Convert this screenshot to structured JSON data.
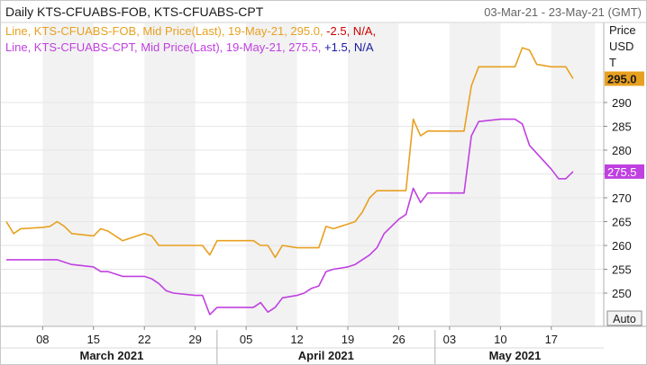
{
  "header": {
    "title": "Daily KTS-CFUABS-FOB, KTS-CFUABS-CPT",
    "date_range": "03-Mar-21 - 23-May-21 (GMT)"
  },
  "legend": [
    {
      "prefix": "Line, KTS-CFUABS-FOB, Mid Price(Last), 19-May-21, 295.0, ",
      "change": "-2.5",
      "change_color": "#cc0000",
      "suffix": ", N/A,",
      "color": "#e8a020"
    },
    {
      "prefix": "Line, KTS-CFUABS-CPT, Mid Price(Last), 19-May-21, 275.5, ",
      "change": "+1.5",
      "change_color": "#1a1aa0",
      "suffix": ", N/A",
      "color": "#c040e0"
    }
  ],
  "price_axis": {
    "label_line1": "Price",
    "label_line2": "USD",
    "label_line3": "T",
    "auto_label": "Auto"
  },
  "last_value_tags": [
    {
      "series": "KTS-CFUABS-FOB",
      "value": 295.0,
      "text": "295.0",
      "bg": "#e8a020"
    },
    {
      "series": "KTS-CFUABS-CPT",
      "value": 275.5,
      "text": "275.5",
      "bg": "#c040e0"
    }
  ],
  "chart_data": {
    "type": "line",
    "x_unit": "date",
    "xlim": [
      "2021-03-03",
      "2021-05-23"
    ],
    "ylim": [
      242,
      302
    ],
    "y_ticks": [
      250,
      255,
      260,
      265,
      270,
      275,
      280,
      285,
      290
    ],
    "x_ticks": [
      {
        "date": "2021-03-08",
        "label": "08"
      },
      {
        "date": "2021-03-15",
        "label": "15"
      },
      {
        "date": "2021-03-22",
        "label": "22"
      },
      {
        "date": "2021-03-29",
        "label": "29"
      },
      {
        "date": "2021-04-05",
        "label": "05"
      },
      {
        "date": "2021-04-12",
        "label": "12"
      },
      {
        "date": "2021-04-19",
        "label": "19"
      },
      {
        "date": "2021-04-26",
        "label": "26"
      },
      {
        "date": "2021-05-03",
        "label": "03"
      },
      {
        "date": "2021-05-10",
        "label": "10"
      },
      {
        "date": "2021-05-17",
        "label": "17"
      }
    ],
    "month_labels": [
      {
        "label": "March 2021",
        "from": "2021-03-03",
        "to": "2021-04-01"
      },
      {
        "label": "April 2021",
        "from": "2021-04-01",
        "to": "2021-05-01"
      },
      {
        "label": "May 2021",
        "from": "2021-05-01",
        "to": "2021-05-23"
      }
    ],
    "shaded_weeks": [
      [
        "2021-03-08",
        "2021-03-15"
      ],
      [
        "2021-03-22",
        "2021-03-29"
      ],
      [
        "2021-04-05",
        "2021-04-12"
      ],
      [
        "2021-04-19",
        "2021-04-26"
      ],
      [
        "2021-05-03",
        "2021-05-10"
      ],
      [
        "2021-05-17",
        "2021-05-23"
      ]
    ],
    "grid": true,
    "series": [
      {
        "name": "KTS-CFUABS-FOB",
        "color": "#e8a020",
        "points": [
          [
            "2021-03-03",
            265.0
          ],
          [
            "2021-03-04",
            262.5
          ],
          [
            "2021-03-05",
            263.5
          ],
          [
            "2021-03-08",
            263.8
          ],
          [
            "2021-03-09",
            264.0
          ],
          [
            "2021-03-10",
            265.0
          ],
          [
            "2021-03-11",
            264.0
          ],
          [
            "2021-03-12",
            262.5
          ],
          [
            "2021-03-15",
            262.0
          ],
          [
            "2021-03-16",
            263.5
          ],
          [
            "2021-03-17",
            263.0
          ],
          [
            "2021-03-18",
            262.0
          ],
          [
            "2021-03-19",
            261.0
          ],
          [
            "2021-03-22",
            262.5
          ],
          [
            "2021-03-23",
            262.0
          ],
          [
            "2021-03-24",
            260.0
          ],
          [
            "2021-03-25",
            260.0
          ],
          [
            "2021-03-26",
            260.0
          ],
          [
            "2021-03-29",
            260.0
          ],
          [
            "2021-03-30",
            260.0
          ],
          [
            "2021-03-31",
            258.0
          ],
          [
            "2021-04-01",
            261.0
          ],
          [
            "2021-04-02",
            261.0
          ],
          [
            "2021-04-05",
            261.0
          ],
          [
            "2021-04-06",
            261.0
          ],
          [
            "2021-04-07",
            260.0
          ],
          [
            "2021-04-08",
            260.0
          ],
          [
            "2021-04-09",
            257.5
          ],
          [
            "2021-04-10",
            260.0
          ],
          [
            "2021-04-12",
            259.5
          ],
          [
            "2021-04-13",
            259.5
          ],
          [
            "2021-04-14",
            259.5
          ],
          [
            "2021-04-15",
            259.5
          ],
          [
            "2021-04-16",
            264.0
          ],
          [
            "2021-04-17",
            263.5
          ],
          [
            "2021-04-19",
            264.5
          ],
          [
            "2021-04-20",
            265.0
          ],
          [
            "2021-04-21",
            267.0
          ],
          [
            "2021-04-22",
            270.0
          ],
          [
            "2021-04-23",
            271.5
          ],
          [
            "2021-04-26",
            271.5
          ],
          [
            "2021-04-27",
            271.5
          ],
          [
            "2021-04-28",
            286.5
          ],
          [
            "2021-04-29",
            283.0
          ],
          [
            "2021-04-30",
            284.0
          ],
          [
            "2021-05-03",
            284.0
          ],
          [
            "2021-05-04",
            284.0
          ],
          [
            "2021-05-05",
            284.0
          ],
          [
            "2021-05-06",
            293.5
          ],
          [
            "2021-05-07",
            297.5
          ],
          [
            "2021-05-10",
            297.5
          ],
          [
            "2021-05-11",
            297.5
          ],
          [
            "2021-05-12",
            297.5
          ],
          [
            "2021-05-13",
            301.5
          ],
          [
            "2021-05-14",
            301.0
          ],
          [
            "2021-05-15",
            298.0
          ],
          [
            "2021-05-17",
            297.5
          ],
          [
            "2021-05-18",
            297.5
          ],
          [
            "2021-05-19",
            297.5
          ],
          [
            "2021-05-20",
            295.0
          ]
        ]
      },
      {
        "name": "KTS-CFUABS-CPT",
        "color": "#c040e0",
        "points": [
          [
            "2021-03-03",
            257.0
          ],
          [
            "2021-03-04",
            257.0
          ],
          [
            "2021-03-05",
            257.0
          ],
          [
            "2021-03-08",
            257.0
          ],
          [
            "2021-03-09",
            257.0
          ],
          [
            "2021-03-10",
            257.0
          ],
          [
            "2021-03-11",
            256.5
          ],
          [
            "2021-03-12",
            256.0
          ],
          [
            "2021-03-15",
            255.5
          ],
          [
            "2021-03-16",
            254.5
          ],
          [
            "2021-03-17",
            254.5
          ],
          [
            "2021-03-18",
            254.0
          ],
          [
            "2021-03-19",
            253.5
          ],
          [
            "2021-03-22",
            253.5
          ],
          [
            "2021-03-23",
            253.0
          ],
          [
            "2021-03-24",
            252.0
          ],
          [
            "2021-03-25",
            250.5
          ],
          [
            "2021-03-26",
            250.0
          ],
          [
            "2021-03-29",
            249.5
          ],
          [
            "2021-03-30",
            249.5
          ],
          [
            "2021-03-31",
            245.5
          ],
          [
            "2021-04-01",
            247.0
          ],
          [
            "2021-04-02",
            247.0
          ],
          [
            "2021-04-05",
            247.0
          ],
          [
            "2021-04-06",
            247.0
          ],
          [
            "2021-04-07",
            248.0
          ],
          [
            "2021-04-08",
            246.0
          ],
          [
            "2021-04-09",
            247.0
          ],
          [
            "2021-04-10",
            249.0
          ],
          [
            "2021-04-12",
            249.5
          ],
          [
            "2021-04-13",
            250.0
          ],
          [
            "2021-04-14",
            251.0
          ],
          [
            "2021-04-15",
            251.5
          ],
          [
            "2021-04-16",
            254.5
          ],
          [
            "2021-04-17",
            255.0
          ],
          [
            "2021-04-19",
            255.5
          ],
          [
            "2021-04-20",
            256.0
          ],
          [
            "2021-04-21",
            257.0
          ],
          [
            "2021-04-22",
            258.0
          ],
          [
            "2021-04-23",
            259.5
          ],
          [
            "2021-04-24",
            262.5
          ],
          [
            "2021-04-26",
            265.5
          ],
          [
            "2021-04-27",
            266.5
          ],
          [
            "2021-04-28",
            272.0
          ],
          [
            "2021-04-29",
            269.0
          ],
          [
            "2021-04-30",
            271.0
          ],
          [
            "2021-05-03",
            271.0
          ],
          [
            "2021-05-04",
            271.0
          ],
          [
            "2021-05-05",
            271.0
          ],
          [
            "2021-05-06",
            283.0
          ],
          [
            "2021-05-07",
            286.0
          ],
          [
            "2021-05-10",
            286.5
          ],
          [
            "2021-05-11",
            286.5
          ],
          [
            "2021-05-12",
            286.5
          ],
          [
            "2021-05-13",
            285.5
          ],
          [
            "2021-05-14",
            281.0
          ],
          [
            "2021-05-17",
            276.0
          ],
          [
            "2021-05-18",
            274.0
          ],
          [
            "2021-05-19",
            274.0
          ],
          [
            "2021-05-20",
            275.5
          ]
        ]
      }
    ]
  }
}
